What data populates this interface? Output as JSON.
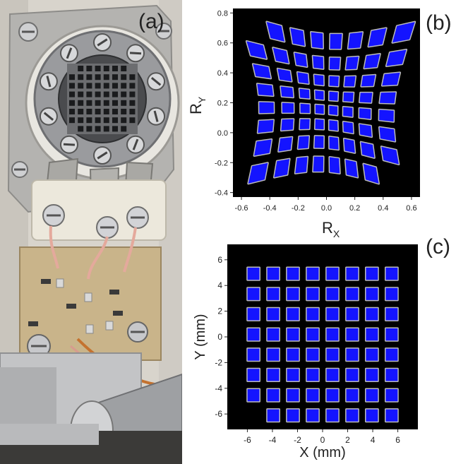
{
  "figure": {
    "panel_a_label": "(a)",
    "panel_b_label": "(b)",
    "panel_c_label": "(c)"
  },
  "chart_data": [
    {
      "type": "heatmap",
      "panel": "(b)",
      "xlabel_main": "R",
      "xlabel_sub": "X",
      "ylabel_main": "R",
      "ylabel_sub": "Y",
      "xlim": [
        -0.66,
        0.66
      ],
      "ylim": [
        -0.43,
        0.83
      ],
      "xticks": [
        "-0.6",
        "-0.4",
        "-0.2",
        "0.0",
        "0.2",
        "0.4",
        "0.6"
      ],
      "xtick_values": [
        -0.6,
        -0.4,
        -0.2,
        0.0,
        0.2,
        0.4,
        0.6
      ],
      "yticks": [
        "-0.4",
        "-0.2",
        "0.0",
        "0.2",
        "0.4",
        "0.6",
        "0.8"
      ],
      "ytick_values": [
        -0.4,
        -0.2,
        0.0,
        0.2,
        0.4,
        0.6,
        0.8
      ],
      "colors": {
        "background": "#000000",
        "cell": "#1414ff",
        "halo": "#bbbbbb"
      },
      "grid": false,
      "pattern": "pincushion-distorted 8x8 grid image"
    },
    {
      "type": "heatmap",
      "panel": "(c)",
      "xlabel": "X (mm)",
      "ylabel": "Y (mm)",
      "xlim": [
        -7.6,
        7.6
      ],
      "ylim": [
        -7.2,
        7.2
      ],
      "xticks": [
        "-6",
        "-4",
        "-2",
        "0",
        "2",
        "4",
        "6"
      ],
      "xtick_values": [
        -6,
        -4,
        -2,
        0,
        2,
        4,
        6
      ],
      "yticks": [
        "-6",
        "-4",
        "-2",
        "0",
        "2",
        "4",
        "6"
      ],
      "ytick_values": [
        -6,
        -4,
        -2,
        0,
        2,
        4,
        6
      ],
      "colors": {
        "background": "#000000",
        "cell": "#1414ff",
        "halo": "#bbbbbb"
      },
      "grid": false,
      "pattern": "corrected 8x8 square grid image"
    }
  ]
}
